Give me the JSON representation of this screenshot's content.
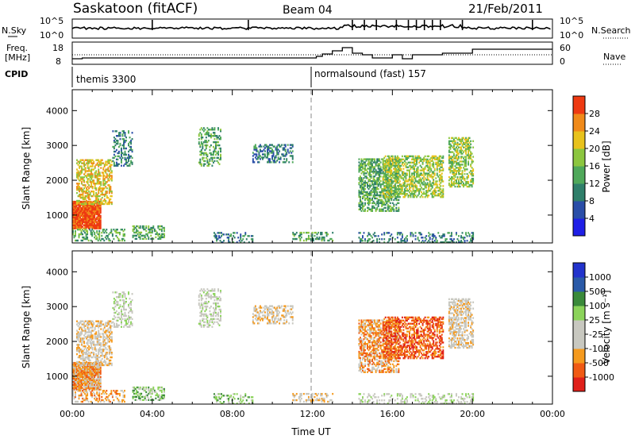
{
  "header": {
    "station": "Saskatoon (fitACF)",
    "beam": "Beam 04",
    "date": "21/Feb/2011"
  },
  "panels": {
    "nsky": {
      "left_label": "N.Sky",
      "right_label": "N.Search",
      "ticks": [
        "10^5",
        "10^0"
      ]
    },
    "freq": {
      "left_label_1": "Freq.",
      "left_label_2": "[MHz]",
      "left_ticks": [
        "18",
        "8"
      ],
      "right_label": "Nave",
      "right_ticks": [
        "60",
        "0"
      ]
    },
    "cpid": {
      "label": "CPID",
      "programs": [
        {
          "name": "themis 3300",
          "start_hour": 0
        },
        {
          "name": "normalsound (fast) 157",
          "start_hour": 12
        }
      ]
    }
  },
  "chart_data": [
    {
      "type": "heatmap",
      "name": "power",
      "ylabel": "Slant Range [km]",
      "xlim": [
        0,
        24
      ],
      "ylim": [
        200,
        4600
      ],
      "yticks": [
        1000,
        2000,
        3000,
        4000
      ],
      "colorbar": {
        "label": "Power [dB]",
        "ticks": [
          "28",
          "24",
          "20",
          "16",
          "12",
          "8",
          "4"
        ],
        "colors": [
          "#1f1fe6",
          "#2a4ea8",
          "#2f7f6a",
          "#4fa85a",
          "#8cc63f",
          "#e8c21c",
          "#f08a1a",
          "#ee3a12"
        ]
      }
    },
    {
      "type": "heatmap",
      "name": "velocity",
      "ylabel": "Slant Range [km]",
      "xlabel": "Time UT",
      "xlim": [
        0,
        24
      ],
      "ylim": [
        200,
        4600
      ],
      "xticks": [
        "00:00",
        "04:00",
        "08:00",
        "12:00",
        "16:00",
        "20:00",
        "00:00"
      ],
      "yticks": [
        1000,
        2000,
        3000,
        4000
      ],
      "colorbar": {
        "label": "Velocity [m s⁻¹]",
        "ticks": [
          "1000",
          "500",
          "100",
          "25",
          "-25",
          "-100",
          "-500",
          "-1000"
        ],
        "colors": [
          "#e0201a",
          "#f05a14",
          "#f59a1e",
          "#c8c8c0",
          "#c8c8c0",
          "#8bd35a",
          "#3a8a3a",
          "#2a5aa8",
          "#2233cc"
        ]
      }
    }
  ],
  "echo_regions": [
    {
      "t0": 0.0,
      "t1": 1.4,
      "r0": 600,
      "r1": 1400,
      "pw": 7,
      "vel": 2,
      "density": 0.95
    },
    {
      "t0": 0.2,
      "t1": 2.0,
      "r0": 1300,
      "r1": 2600,
      "pw": 5,
      "vel": 3,
      "density": 0.55
    },
    {
      "t0": 0.0,
      "t1": 2.6,
      "r0": 250,
      "r1": 600,
      "pw": 3,
      "vel": 2,
      "density": 0.4
    },
    {
      "t0": 2.0,
      "t1": 3.0,
      "r0": 2400,
      "r1": 3400,
      "pw": 2,
      "vel": 4,
      "density": 0.35
    },
    {
      "t0": 3.0,
      "t1": 4.6,
      "r0": 300,
      "r1": 700,
      "pw": 3,
      "vel": 5,
      "density": 0.45
    },
    {
      "t0": 6.3,
      "t1": 7.4,
      "r0": 2400,
      "r1": 3500,
      "pw": 3,
      "vel": 4,
      "density": 0.4
    },
    {
      "t0": 7.0,
      "t1": 9.0,
      "r0": 200,
      "r1": 500,
      "pw": 2,
      "vel": 5,
      "density": 0.3
    },
    {
      "t0": 9.0,
      "t1": 11.0,
      "r0": 2500,
      "r1": 3000,
      "pw": 2,
      "vel": 3,
      "density": 0.45
    },
    {
      "t0": 11.0,
      "t1": 13.0,
      "r0": 250,
      "r1": 500,
      "pw": 3,
      "vel": 3,
      "density": 0.35
    },
    {
      "t0": 14.3,
      "t1": 16.3,
      "r0": 1100,
      "r1": 2600,
      "pw": 3,
      "vel": 2,
      "density": 0.6
    },
    {
      "t0": 15.5,
      "t1": 18.5,
      "r0": 1500,
      "r1": 2700,
      "pw": 4,
      "vel": 1,
      "density": 0.55
    },
    {
      "t0": 18.8,
      "t1": 20.0,
      "r0": 1800,
      "r1": 3200,
      "pw": 4,
      "vel": 3,
      "density": 0.55
    },
    {
      "t0": 14.3,
      "t1": 20.0,
      "r0": 200,
      "r1": 500,
      "pw": 2,
      "vel": 4,
      "density": 0.3
    }
  ]
}
